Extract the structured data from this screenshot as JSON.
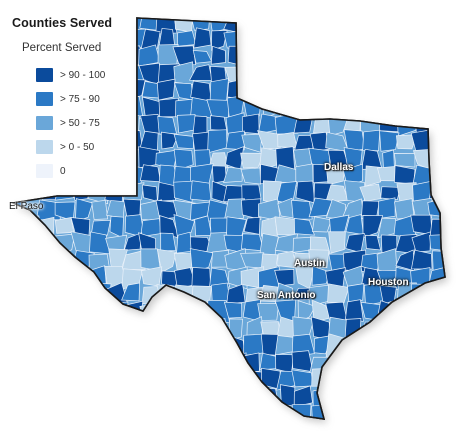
{
  "legend": {
    "title": "Counties Served",
    "subtitle": "Percent Served",
    "classes": [
      {
        "label": "> 90 - 100",
        "color": "#0b4b9c"
      },
      {
        "label": "> 75 - 90",
        "color": "#2b79c5"
      },
      {
        "label": "> 50 - 75",
        "color": "#6aa7d9"
      },
      {
        "label": "> 0 - 50",
        "color": "#bcd7ec"
      },
      {
        "label": "0",
        "color": "#eef3fb"
      }
    ]
  },
  "cities": [
    {
      "name": "Dallas",
      "id": "dallas"
    },
    {
      "name": "El Paso",
      "id": "elpaso"
    },
    {
      "name": "Austin",
      "id": "austin"
    },
    {
      "name": "San Antonio",
      "id": "sanantonio"
    },
    {
      "name": "Houston",
      "id": "houston"
    }
  ]
}
